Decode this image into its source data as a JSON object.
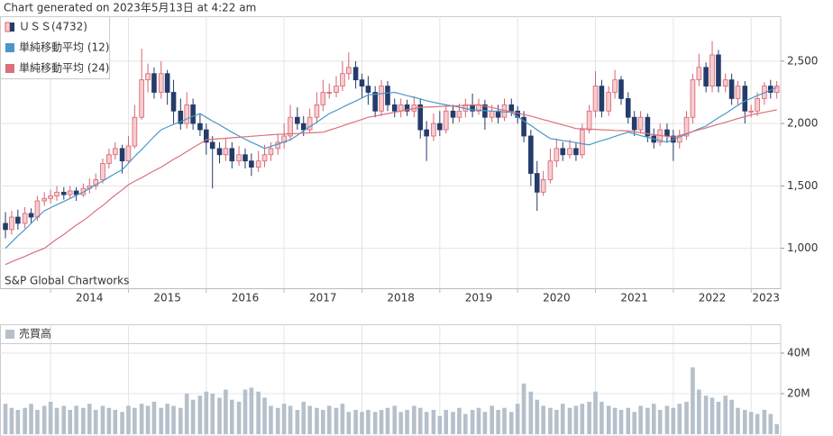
{
  "header": "Chart generated on 2023年5月13日 at 4:22 am",
  "chart_data": [
    {
      "type": "candlestick",
      "watermark": "S&P Global Chartworks",
      "x": [
        2013.42,
        2013.5,
        2013.58,
        2013.67,
        2013.75,
        2013.83,
        2013.92,
        2014,
        2014.08,
        2014.17,
        2014.25,
        2014.33,
        2014.42,
        2014.5,
        2014.58,
        2014.67,
        2014.75,
        2014.83,
        2014.92,
        2015,
        2015.08,
        2015.17,
        2015.25,
        2015.33,
        2015.42,
        2015.5,
        2015.58,
        2015.67,
        2015.75,
        2015.83,
        2015.92,
        2016,
        2016.08,
        2016.17,
        2016.25,
        2016.33,
        2016.42,
        2016.5,
        2016.58,
        2016.67,
        2016.75,
        2016.83,
        2016.92,
        2017,
        2017.08,
        2017.17,
        2017.25,
        2017.33,
        2017.42,
        2017.5,
        2017.58,
        2017.67,
        2017.75,
        2017.83,
        2017.92,
        2018,
        2018.08,
        2018.17,
        2018.25,
        2018.33,
        2018.42,
        2018.5,
        2018.58,
        2018.67,
        2018.75,
        2018.83,
        2018.92,
        2019,
        2019.08,
        2019.17,
        2019.25,
        2019.33,
        2019.42,
        2019.5,
        2019.58,
        2019.67,
        2019.75,
        2019.83,
        2019.92,
        2020,
        2020.08,
        2020.17,
        2020.25,
        2020.33,
        2020.42,
        2020.5,
        2020.58,
        2020.67,
        2020.75,
        2020.83,
        2020.92,
        2021,
        2021.08,
        2021.17,
        2021.25,
        2021.33,
        2021.42,
        2021.5,
        2021.58,
        2021.67,
        2021.75,
        2021.83,
        2021.92,
        2022,
        2022.08,
        2022.17,
        2022.25,
        2022.33,
        2022.42,
        2022.5,
        2022.58,
        2022.67,
        2022.75,
        2022.83,
        2022.92,
        2023,
        2023.08,
        2023.17,
        2023.25,
        2023.33
      ],
      "xlim": [
        2013.35,
        2023.38
      ],
      "xticks": [
        2014,
        2015,
        2016,
        2017,
        2018,
        2019,
        2020,
        2021,
        2022,
        2023
      ],
      "ylim": [
        680,
        2860
      ],
      "yticks": [
        {
          "value": 1000,
          "label": "1,000"
        },
        {
          "value": 1500,
          "label": "1,500"
        },
        {
          "value": 2000,
          "label": "2,000"
        },
        {
          "value": 2500,
          "label": "2,500"
        }
      ],
      "grid": true,
      "series": [
        {
          "name": "ＵＳＳ(4732)",
          "up_color": "#d9626e",
          "up_fill": "#f6cdd1",
          "down_color": "#253c6a",
          "open": [
            1200,
            1150,
            1250,
            1200,
            1280,
            1250,
            1380,
            1400,
            1420,
            1450,
            1430,
            1460,
            1430,
            1480,
            1500,
            1550,
            1680,
            1750,
            1800,
            1700,
            1820,
            2050,
            2350,
            2400,
            2250,
            2400,
            2250,
            2100,
            2000,
            2150,
            2000,
            1950,
            1850,
            1800,
            1750,
            1800,
            1700,
            1750,
            1700,
            1650,
            1700,
            1750,
            1800,
            1850,
            1900,
            2050,
            2000,
            1950,
            2050,
            2150,
            2250,
            2250,
            2300,
            2400,
            2450,
            2350,
            2300,
            2250,
            2100,
            2300,
            2150,
            2100,
            2150,
            2100,
            2150,
            1950,
            1900,
            2000,
            1950,
            2100,
            2050,
            2100,
            2150,
            2100,
            2150,
            2050,
            2100,
            2050,
            2150,
            2100,
            2050,
            1900,
            1600,
            1450,
            1550,
            1700,
            1800,
            1750,
            1800,
            1750,
            1950,
            2100,
            2300,
            2100,
            2250,
            2350,
            2200,
            2050,
            1950,
            2050,
            1900,
            1850,
            1950,
            1900,
            1850,
            1900,
            2050,
            2350,
            2450,
            2300,
            2550,
            2300,
            2350,
            2200,
            2300,
            2100,
            2100,
            2200,
            2300,
            2250
          ],
          "high": [
            1290,
            1300,
            1310,
            1330,
            1320,
            1420,
            1450,
            1470,
            1500,
            1490,
            1500,
            1490,
            1520,
            1560,
            1600,
            1720,
            1800,
            1850,
            1830,
            1900,
            2150,
            2600,
            2480,
            2450,
            2500,
            2430,
            2350,
            2200,
            2250,
            2200,
            2080,
            2000,
            1900,
            1850,
            1880,
            1850,
            1820,
            1800,
            1760,
            1780,
            1830,
            1850,
            1920,
            2000,
            2150,
            2130,
            2060,
            2120,
            2250,
            2350,
            2320,
            2380,
            2500,
            2570,
            2500,
            2400,
            2380,
            2300,
            2350,
            2340,
            2200,
            2200,
            2190,
            2220,
            2200,
            2020,
            2080,
            2100,
            2150,
            2150,
            2160,
            2200,
            2240,
            2200,
            2190,
            2150,
            2150,
            2200,
            2200,
            2140,
            2100,
            1950,
            1700,
            1620,
            1800,
            1880,
            1850,
            1870,
            1850,
            2000,
            2150,
            2420,
            2350,
            2300,
            2430,
            2380,
            2250,
            2100,
            2100,
            2080,
            1960,
            2000,
            2000,
            1950,
            1950,
            2100,
            2400,
            2560,
            2490,
            2660,
            2590,
            2400,
            2400,
            2340,
            2340,
            2150,
            2250,
            2330,
            2350,
            2340
          ],
          "low": [
            1080,
            1110,
            1150,
            1160,
            1200,
            1220,
            1340,
            1360,
            1380,
            1390,
            1400,
            1380,
            1410,
            1440,
            1470,
            1520,
            1640,
            1710,
            1600,
            1680,
            1800,
            2030,
            2250,
            2200,
            2200,
            2150,
            2000,
            1950,
            1960,
            1950,
            1900,
            1750,
            1480,
            1680,
            1700,
            1640,
            1660,
            1640,
            1580,
            1610,
            1650,
            1700,
            1750,
            1800,
            1860,
            1950,
            1900,
            1930,
            2000,
            2100,
            2200,
            2210,
            2260,
            2350,
            2280,
            2200,
            2150,
            2050,
            2060,
            2100,
            2050,
            2050,
            2060,
            2050,
            1880,
            1700,
            1860,
            1900,
            1920,
            2000,
            2010,
            2050,
            2050,
            2070,
            1950,
            2010,
            2000,
            2020,
            2060,
            2000,
            1850,
            1500,
            1300,
            1420,
            1520,
            1650,
            1700,
            1720,
            1700,
            1720,
            1920,
            2050,
            2050,
            2060,
            2200,
            2150,
            2000,
            1900,
            1920,
            1850,
            1800,
            1820,
            1850,
            1700,
            1800,
            1870,
            2000,
            2300,
            2250,
            2250,
            2250,
            2250,
            2150,
            2150,
            2000,
            2050,
            2060,
            2150,
            2200,
            2200
          ],
          "close": [
            1150,
            1250,
            1200,
            1280,
            1250,
            1380,
            1400,
            1420,
            1450,
            1430,
            1460,
            1430,
            1480,
            1500,
            1550,
            1680,
            1750,
            1800,
            1700,
            1820,
            2050,
            2350,
            2400,
            2250,
            2400,
            2250,
            2100,
            2000,
            2150,
            2000,
            1950,
            1850,
            1800,
            1750,
            1800,
            1700,
            1750,
            1700,
            1650,
            1700,
            1750,
            1800,
            1850,
            1900,
            2050,
            2000,
            1950,
            2050,
            2150,
            2250,
            2250,
            2300,
            2400,
            2450,
            2350,
            2300,
            2250,
            2100,
            2300,
            2150,
            2100,
            2150,
            2100,
            2150,
            1950,
            1900,
            2000,
            1950,
            2100,
            2050,
            2100,
            2150,
            2100,
            2150,
            2050,
            2100,
            2050,
            2150,
            2100,
            2050,
            1900,
            1600,
            1450,
            1550,
            1700,
            1800,
            1750,
            1800,
            1750,
            1950,
            2100,
            2300,
            2100,
            2250,
            2350,
            2200,
            2050,
            1950,
            2050,
            1900,
            1850,
            1950,
            1900,
            1850,
            1900,
            2050,
            2350,
            2450,
            2300,
            2550,
            2300,
            2350,
            2200,
            2300,
            2100,
            2100,
            2200,
            2300,
            2250,
            2300
          ]
        },
        {
          "name": "単純移動平均 (12)",
          "color": "#4b97c8",
          "values": [
            1000,
            1050,
            1100,
            1150,
            1200,
            1250,
            1300,
            1325,
            1350,
            1375,
            1400,
            1425,
            1450,
            1480,
            1510,
            1540,
            1570,
            1600,
            1630,
            1683,
            1737,
            1790,
            1843,
            1897,
            1950,
            1972,
            1993,
            2015,
            2037,
            2058,
            2080,
            2050,
            2020,
            1990,
            1960,
            1930,
            1900,
            1875,
            1850,
            1825,
            1800,
            1818,
            1835,
            1853,
            1870,
            1905,
            1940,
            1975,
            2010,
            2045,
            2080,
            2105,
            2130,
            2155,
            2180,
            2205,
            2230,
            2235,
            2240,
            2245,
            2250,
            2237,
            2223,
            2210,
            2197,
            2183,
            2170,
            2160,
            2150,
            2140,
            2130,
            2120,
            2110,
            2107,
            2103,
            2100,
            2097,
            2093,
            2090,
            2055,
            2020,
            1985,
            1950,
            1915,
            1880,
            1872,
            1863,
            1855,
            1847,
            1838,
            1830,
            1847,
            1863,
            1880,
            1897,
            1913,
            1930,
            1917,
            1903,
            1890,
            1877,
            1863,
            1850,
            1872,
            1893,
            1915,
            1937,
            1958,
            1980,
            2013,
            2047,
            2080,
            2113,
            2147,
            2180,
            2202,
            2224,
            2246,
            2268,
            2290
          ]
        },
        {
          "name": "単純移動平均 (24)",
          "color": "#d9707c",
          "values": [
            870,
            892,
            913,
            935,
            957,
            978,
            1000,
            1037,
            1074,
            1111,
            1149,
            1186,
            1223,
            1260,
            1302,
            1343,
            1385,
            1427,
            1468,
            1510,
            1538,
            1566,
            1594,
            1622,
            1650,
            1681,
            1713,
            1744,
            1776,
            1807,
            1839,
            1870,
            1874,
            1878,
            1882,
            1886,
            1890,
            1894,
            1898,
            1902,
            1906,
            1910,
            1913,
            1915,
            1918,
            1920,
            1923,
            1925,
            1928,
            1930,
            1947,
            1964,
            1981,
            1999,
            2016,
            2033,
            2050,
            2060,
            2070,
            2080,
            2090,
            2100,
            2110,
            2120,
            2130,
            2132,
            2134,
            2137,
            2139,
            2141,
            2143,
            2146,
            2148,
            2150,
            2139,
            2128,
            2116,
            2105,
            2094,
            2083,
            2071,
            2060,
            2046,
            2031,
            2017,
            2003,
            1989,
            1974,
            1960,
            1958,
            1955,
            1953,
            1950,
            1948,
            1945,
            1943,
            1940,
            1933,
            1926,
            1919,
            1911,
            1904,
            1897,
            1890,
            1905,
            1920,
            1935,
            1950,
            1965,
            1980,
            1995,
            2010,
            2025,
            2040,
            2055,
            2070,
            2080,
            2090,
            2100,
            2110
          ]
        }
      ]
    },
    {
      "type": "bar",
      "series": [
        {
          "name": "売買高",
          "color": "#b5c0ca",
          "values": [
            15000000.0,
            13000000.0,
            12000000.0,
            13000000.0,
            15000000.0,
            12000000.0,
            14000000.0,
            16000000.0,
            13000000.0,
            14000000.0,
            12000000.0,
            14000000.0,
            13000000.0,
            15000000.0,
            12000000.0,
            14000000.0,
            13000000.0,
            12000000.0,
            11000000.0,
            14000000.0,
            13000000.0,
            15000000.0,
            14000000.0,
            16000000.0,
            13000000.0,
            15000000.0,
            14000000.0,
            13000000.0,
            20000000.0,
            17000000.0,
            19000000.0,
            21000000.0,
            20000000.0,
            18000000.0,
            22000000.0,
            17000000.0,
            16000000.0,
            22000000.0,
            23000000.0,
            21000000.0,
            18000000.0,
            14000000.0,
            13000000.0,
            15000000.0,
            14000000.0,
            12000000.0,
            16000000.0,
            14000000.0,
            13000000.0,
            12000000.0,
            14000000.0,
            13000000.0,
            15000000.0,
            11000000.0,
            12000000.0,
            11000000.0,
            12000000.0,
            11000000.0,
            12000000.0,
            13000000.0,
            14000000.0,
            11000000.0,
            12000000.0,
            14000000.0,
            13000000.0,
            11000000.0,
            12000000.0,
            9000000.0,
            12000000.0,
            11000000.0,
            13000000.0,
            10000000.0,
            12000000.0,
            13000000.0,
            11000000.0,
            14000000.0,
            12000000.0,
            13000000.0,
            11000000.0,
            15000000.0,
            25000000.0,
            21000000.0,
            17000000.0,
            14000000.0,
            13000000.0,
            12000000.0,
            15000000.0,
            13000000.0,
            14000000.0,
            15000000.0,
            16000000.0,
            21000000.0,
            16000000.0,
            14000000.0,
            13000000.0,
            12000000.0,
            13000000.0,
            11000000.0,
            14000000.0,
            13000000.0,
            15000000.0,
            12000000.0,
            14000000.0,
            13000000.0,
            15000000.0,
            16000000.0,
            33000000.0,
            22000000.0,
            19000000.0,
            18000000.0,
            16000000.0,
            19000000.0,
            17000000.0,
            13000000.0,
            12000000.0,
            11000000.0,
            10000000.0,
            12000000.0,
            10000000.0,
            5000000.0
          ]
        }
      ],
      "ylim": [
        0,
        44000000.0
      ],
      "yticks": [
        {
          "value": 20000000.0,
          "label": "20M"
        },
        {
          "value": 40000000.0,
          "label": "40M"
        }
      ],
      "grid": true
    }
  ]
}
